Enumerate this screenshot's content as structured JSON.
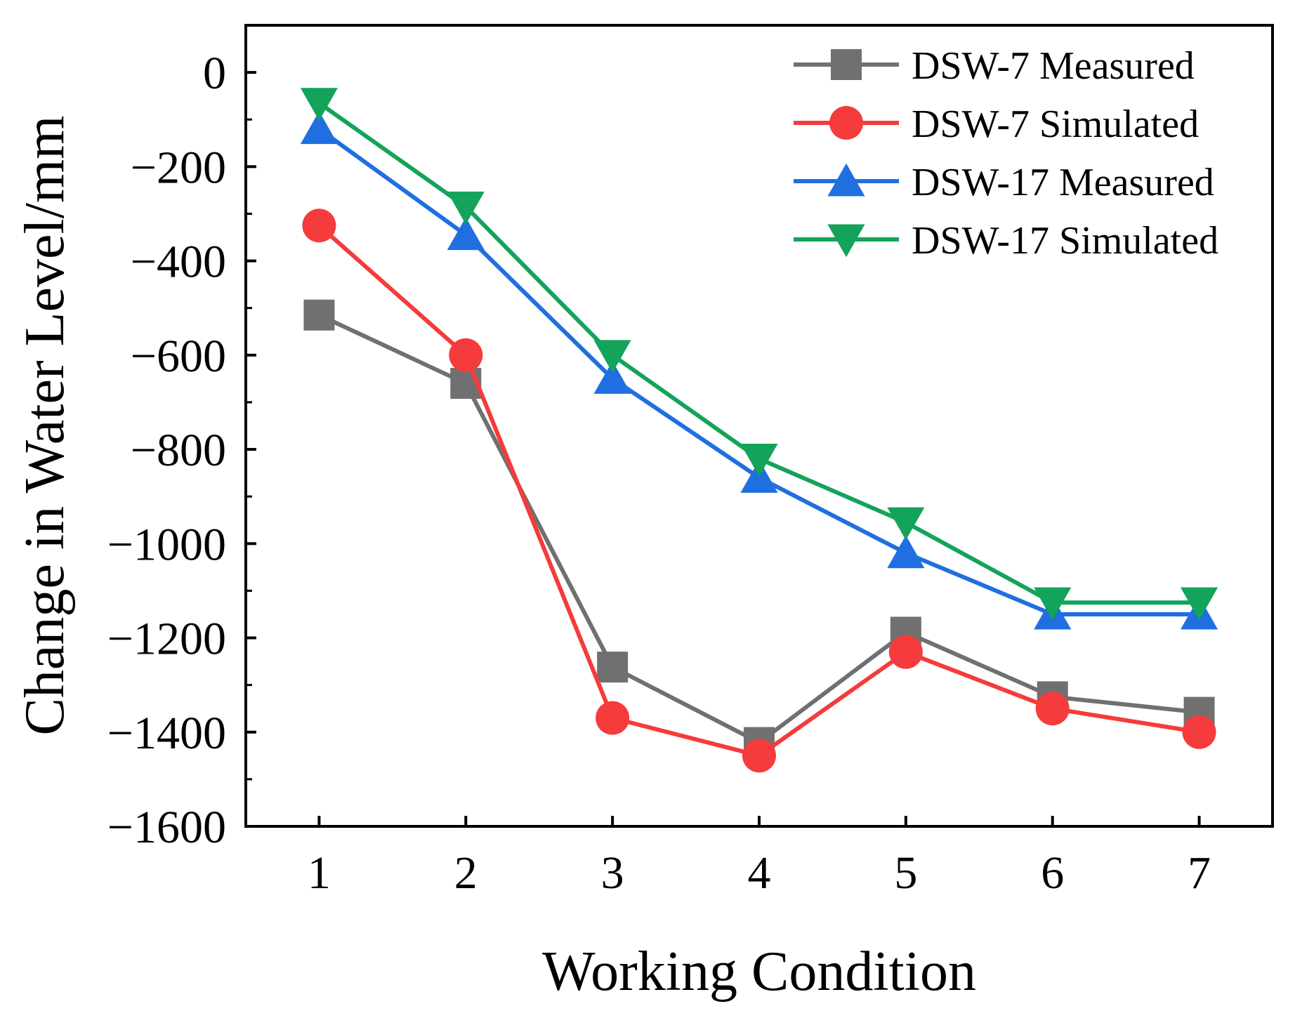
{
  "chart_data": {
    "type": "line",
    "title": "",
    "xlabel": "Working Condition",
    "ylabel": "Change in Water Level/mm",
    "x": [
      1,
      2,
      3,
      4,
      5,
      6,
      7
    ],
    "xlim": [
      0.5,
      7.5
    ],
    "ylim": [
      -1600,
      100
    ],
    "xticks": [
      1,
      2,
      3,
      4,
      5,
      6,
      7
    ],
    "yticks": [
      0,
      -200,
      -400,
      -600,
      -800,
      -1000,
      -1200,
      -1400,
      -1600
    ],
    "ytick_labels": [
      "0",
      "−200",
      "−400",
      "−600",
      "−800",
      "−1000",
      "−1200",
      "−1400",
      "−1600"
    ],
    "grid": false,
    "legend_position": "top-right",
    "series": [
      {
        "name": "DSW-7 Measured",
        "color": "#707070",
        "marker": "square",
        "values": [
          -515,
          -660,
          -1262,
          -1422,
          -1188,
          -1325,
          -1358
        ]
      },
      {
        "name": "DSW-7 Simulated",
        "color": "#f53b3b",
        "marker": "circle",
        "values": [
          -325,
          -600,
          -1370,
          -1450,
          -1230,
          -1350,
          -1400
        ]
      },
      {
        "name": "DSW-17 Measured",
        "color": "#1f6fe0",
        "marker": "triangle-up",
        "values": [
          -120,
          -345,
          -650,
          -860,
          -1020,
          -1150,
          -1150
        ]
      },
      {
        "name": "DSW-17 Simulated",
        "color": "#14a35a",
        "marker": "triangle-down",
        "values": [
          -65,
          -285,
          -600,
          -820,
          -955,
          -1125,
          -1125
        ]
      }
    ]
  }
}
